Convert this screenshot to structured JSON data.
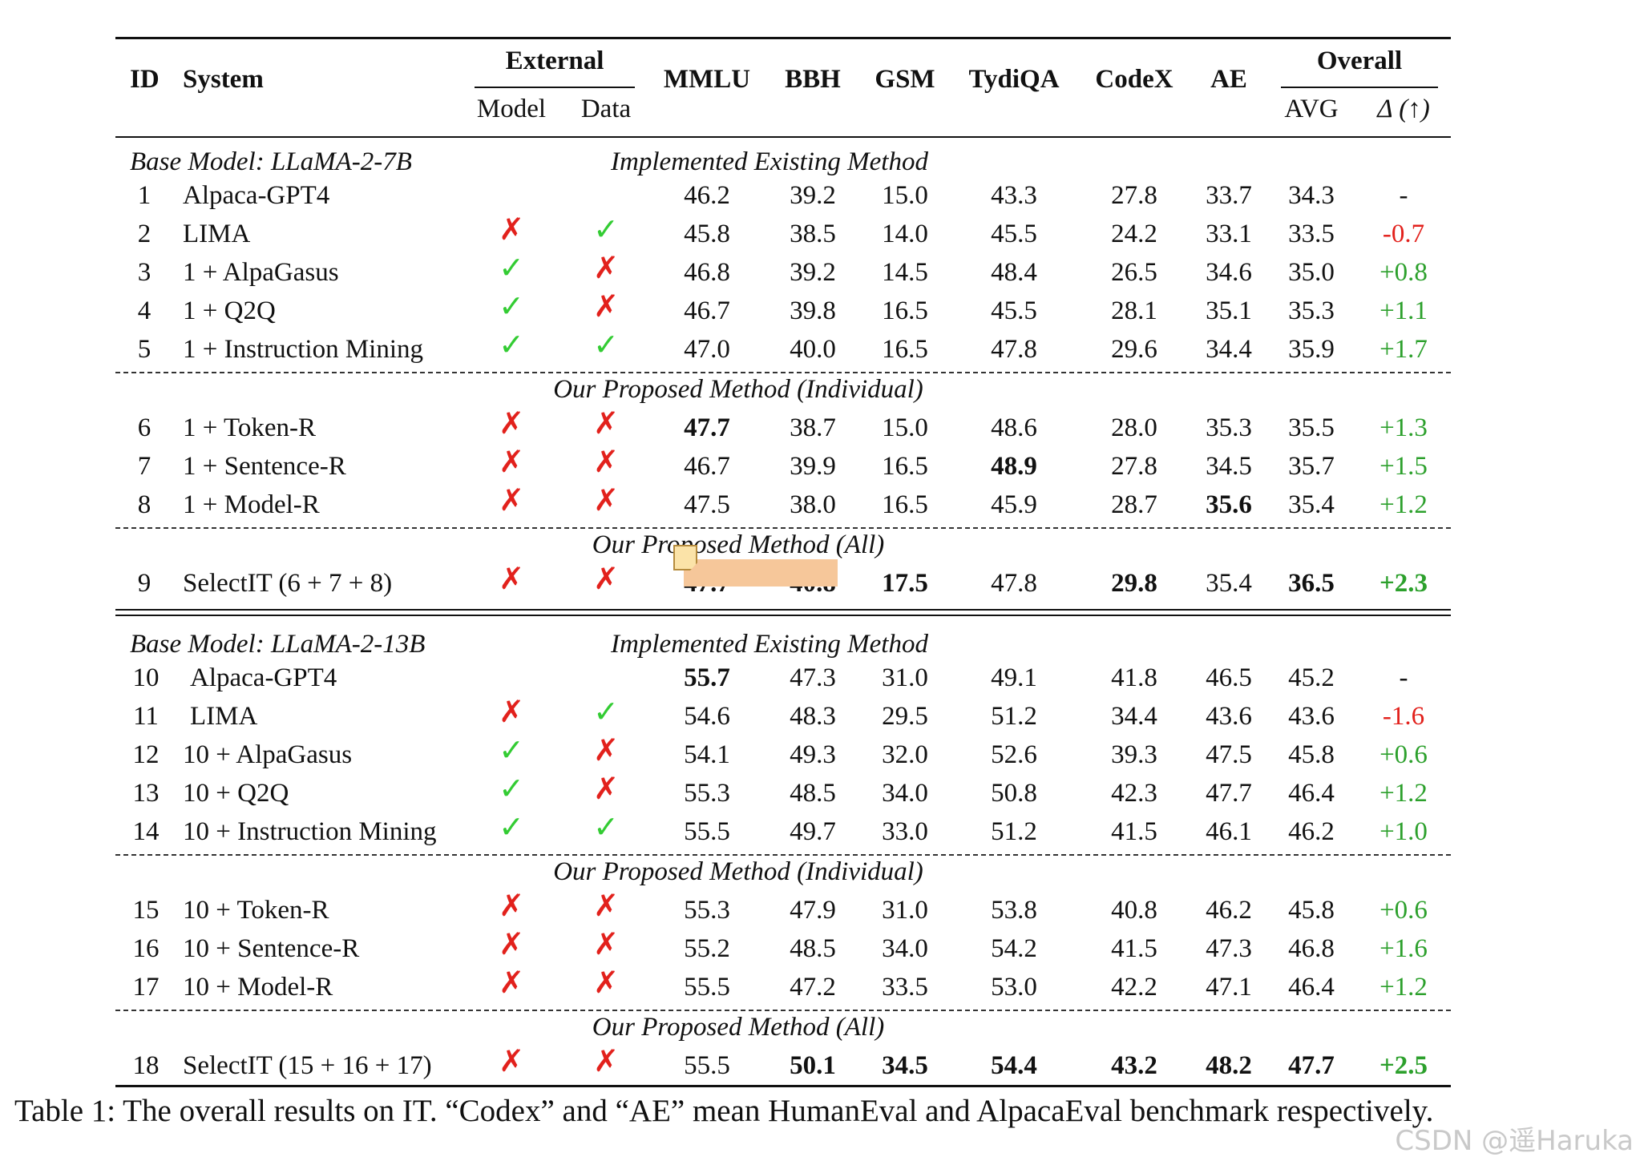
{
  "headers": {
    "id": "ID",
    "system": "System",
    "external": "External",
    "model": "Model",
    "data": "Data",
    "mmlu": "MMLU",
    "bbh": "BBH",
    "gsm": "GSM",
    "tydiqa": "TydiQA",
    "codex": "CodeX",
    "ae": "AE",
    "overall": "Overall",
    "avg": "AVG",
    "delta": "Δ (↑)"
  },
  "sections": [
    {
      "base_model": "Base Model: LLaMA-2-7B",
      "groups": [
        {
          "label": "Implemented Existing Method",
          "rows": [
            {
              "id": "1",
              "system": "Alpaca-GPT4",
              "model": "",
              "data": "",
              "mmlu": "46.2",
              "bbh": "39.2",
              "gsm": "15.0",
              "tydiqa": "43.3",
              "codex": "27.8",
              "ae": "33.7",
              "avg": "34.3",
              "delta": "-",
              "delta_color": "black",
              "bold": []
            },
            {
              "id": "2",
              "system": "LIMA",
              "model": "✗",
              "data": "✓",
              "mmlu": "45.8",
              "bbh": "38.5",
              "gsm": "14.0",
              "tydiqa": "45.5",
              "codex": "24.2",
              "ae": "33.1",
              "avg": "33.5",
              "delta": "-0.7",
              "delta_color": "red",
              "bold": []
            },
            {
              "id": "3",
              "system": "1 + AlpaGasus",
              "model": "✓",
              "data": "✗",
              "mmlu": "46.8",
              "bbh": "39.2",
              "gsm": "14.5",
              "tydiqa": "48.4",
              "codex": "26.5",
              "ae": "34.6",
              "avg": "35.0",
              "delta": "+0.8",
              "delta_color": "green",
              "bold": []
            },
            {
              "id": "4",
              "system": "1 + Q2Q",
              "model": "✓",
              "data": "✗",
              "mmlu": "46.7",
              "bbh": "39.8",
              "gsm": "16.5",
              "tydiqa": "45.5",
              "codex": "28.1",
              "ae": "35.1",
              "avg": "35.3",
              "delta": "+1.1",
              "delta_color": "green",
              "bold": []
            },
            {
              "id": "5",
              "system": "1 + Instruction Mining",
              "model": "✓",
              "data": "✓",
              "mmlu": "47.0",
              "bbh": "40.0",
              "gsm": "16.5",
              "tydiqa": "47.8",
              "codex": "29.6",
              "ae": "34.4",
              "avg": "35.9",
              "delta": "+1.7",
              "delta_color": "green",
              "bold": []
            }
          ]
        },
        {
          "label": "Our Proposed Method (Individual)",
          "rows": [
            {
              "id": "6",
              "system": "1 + Token-R",
              "model": "✗",
              "data": "✗",
              "mmlu": "47.7",
              "bbh": "38.7",
              "gsm": "15.0",
              "tydiqa": "48.6",
              "codex": "28.0",
              "ae": "35.3",
              "avg": "35.5",
              "delta": "+1.3",
              "delta_color": "green",
              "bold": [
                "mmlu"
              ]
            },
            {
              "id": "7",
              "system": "1 + Sentence-R",
              "model": "✗",
              "data": "✗",
              "mmlu": "46.7",
              "bbh": "39.9",
              "gsm": "16.5",
              "tydiqa": "48.9",
              "codex": "27.8",
              "ae": "34.5",
              "avg": "35.7",
              "delta": "+1.5",
              "delta_color": "green",
              "bold": [
                "tydiqa"
              ]
            },
            {
              "id": "8",
              "system": "1 + Model-R",
              "model": "✗",
              "data": "✗",
              "mmlu": "47.5",
              "bbh": "38.0",
              "gsm": "16.5",
              "tydiqa": "45.9",
              "codex": "28.7",
              "ae": "35.6",
              "avg": "35.4",
              "delta": "+1.2",
              "delta_color": "green",
              "bold": [
                "ae"
              ]
            }
          ]
        },
        {
          "label": "Our Proposed Method (All)",
          "rows": [
            {
              "id": "9",
              "system": "SelectIT (6 + 7 + 8)",
              "model": "✗",
              "data": "✗",
              "mmlu": "47.7",
              "bbh": "40.8",
              "gsm": "17.5",
              "tydiqa": "47.8",
              "codex": "29.8",
              "ae": "35.4",
              "avg": "36.5",
              "delta": "+2.3",
              "delta_color": "green",
              "bold": [
                "mmlu",
                "bbh",
                "gsm",
                "codex",
                "avg",
                "delta"
              ]
            }
          ]
        }
      ]
    },
    {
      "base_model": "Base Model: LLaMA-2-13B",
      "groups": [
        {
          "label": "Implemented Existing Method",
          "rows": [
            {
              "id": "10",
              "system": "Alpaca-GPT4",
              "model": "",
              "data": "",
              "mmlu": "55.7",
              "bbh": "47.3",
              "gsm": "31.0",
              "tydiqa": "49.1",
              "codex": "41.8",
              "ae": "46.5",
              "avg": "45.2",
              "delta": "-",
              "delta_color": "black",
              "bold": [
                "mmlu"
              ]
            },
            {
              "id": "11",
              "system": "LIMA",
              "model": "✗",
              "data": "✓",
              "mmlu": "54.6",
              "bbh": "48.3",
              "gsm": "29.5",
              "tydiqa": "51.2",
              "codex": "34.4",
              "ae": "43.6",
              "avg": "43.6",
              "delta": "-1.6",
              "delta_color": "red",
              "bold": []
            },
            {
              "id": "12",
              "system": "10 + AlpaGasus",
              "model": "✓",
              "data": "✗",
              "mmlu": "54.1",
              "bbh": "49.3",
              "gsm": "32.0",
              "tydiqa": "52.6",
              "codex": "39.3",
              "ae": "47.5",
              "avg": "45.8",
              "delta": "+0.6",
              "delta_color": "green",
              "bold": []
            },
            {
              "id": "13",
              "system": "10 + Q2Q",
              "model": "✓",
              "data": "✗",
              "mmlu": "55.3",
              "bbh": "48.5",
              "gsm": "34.0",
              "tydiqa": "50.8",
              "codex": "42.3",
              "ae": "47.7",
              "avg": "46.4",
              "delta": "+1.2",
              "delta_color": "green",
              "bold": []
            },
            {
              "id": "14",
              "system": "10 + Instruction Mining",
              "model": "✓",
              "data": "✓",
              "mmlu": "55.5",
              "bbh": "49.7",
              "gsm": "33.0",
              "tydiqa": "51.2",
              "codex": "41.5",
              "ae": "46.1",
              "avg": "46.2",
              "delta": "+1.0",
              "delta_color": "green",
              "bold": []
            }
          ]
        },
        {
          "label": "Our Proposed Method (Individual)",
          "rows": [
            {
              "id": "15",
              "system": "10 + Token-R",
              "model": "✗",
              "data": "✗",
              "mmlu": "55.3",
              "bbh": "47.9",
              "gsm": "31.0",
              "tydiqa": "53.8",
              "codex": "40.8",
              "ae": "46.2",
              "avg": "45.8",
              "delta": "+0.6",
              "delta_color": "green",
              "bold": []
            },
            {
              "id": "16",
              "system": "10 + Sentence-R",
              "model": "✗",
              "data": "✗",
              "mmlu": "55.2",
              "bbh": "48.5",
              "gsm": "34.0",
              "tydiqa": "54.2",
              "codex": "41.5",
              "ae": "47.3",
              "avg": "46.8",
              "delta": "+1.6",
              "delta_color": "green",
              "bold": []
            },
            {
              "id": "17",
              "system": "10 + Model-R",
              "model": "✗",
              "data": "✗",
              "mmlu": "55.5",
              "bbh": "47.2",
              "gsm": "33.5",
              "tydiqa": "53.0",
              "codex": "42.2",
              "ae": "47.1",
              "avg": "46.4",
              "delta": "+1.2",
              "delta_color": "green",
              "bold": []
            }
          ]
        },
        {
          "label": "Our Proposed Method (All)",
          "rows": [
            {
              "id": "18",
              "system": "SelectIT (15 + 16 + 17)",
              "model": "✗",
              "data": "✗",
              "mmlu": "55.5",
              "bbh": "50.1",
              "gsm": "34.5",
              "tydiqa": "54.4",
              "codex": "43.2",
              "ae": "48.2",
              "avg": "47.7",
              "delta": "+2.5",
              "delta_color": "green",
              "bold": [
                "bbh",
                "gsm",
                "tydiqa",
                "codex",
                "ae",
                "avg",
                "delta"
              ]
            }
          ]
        }
      ]
    }
  ],
  "caption": "Table 1: The overall results on IT. “Codex” and “AE” mean HumanEval and AlpacaEval benchmark respectively.",
  "watermark": "CSDN @遥Haruka",
  "colors": {
    "red": "#e2211c",
    "green": "#2ca02c",
    "check_green": "#33cc33",
    "highlight": "#f6c79a"
  }
}
